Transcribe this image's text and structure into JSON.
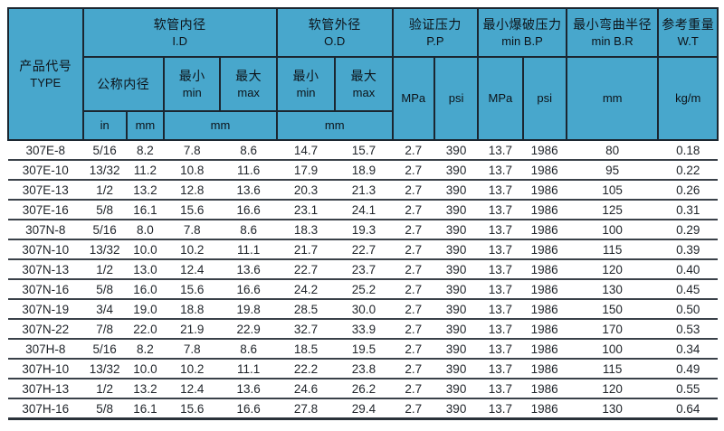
{
  "colors": {
    "header_bg": "#48a7cc",
    "header_border": "#1b2630",
    "row_line": "#3a4149",
    "text": "#1f242a",
    "page_bg": "#ffffff"
  },
  "table": {
    "header": {
      "type": {
        "zh": "产品代号",
        "en": "TYPE"
      },
      "inner_diameter": {
        "zh": "软管内径",
        "en": "I.D"
      },
      "outer_diameter": {
        "zh": "软管外径",
        "en": "O.D"
      },
      "proof_pressure": {
        "zh": "验证压力",
        "en": "P.P"
      },
      "burst_pressure": {
        "zh": "最小爆破压力",
        "en": "min B.P"
      },
      "bend_radius": {
        "zh": "最小弯曲半径",
        "en": "min B.R"
      },
      "weight": {
        "zh": "参考重量",
        "en": "W.T"
      },
      "nominal_id": {
        "zh": "公称内径"
      },
      "min": {
        "zh": "最小",
        "en": "min"
      },
      "max": {
        "zh": "最大",
        "en": "max"
      },
      "units": {
        "inch": "in",
        "mm": "mm",
        "mpa": "MPa",
        "psi": "psi",
        "kg_per_m": "kg/m"
      }
    },
    "column_keys": [
      "type",
      "nominal-in",
      "nominal-mm",
      "id-min",
      "id-max",
      "od-min",
      "od-max",
      "pp-mpa",
      "pp-psi",
      "bp-mpa",
      "bp-psi",
      "br-mm",
      "wt-kgm"
    ],
    "rows": [
      [
        "307E-8",
        "5/16",
        "8.2",
        "7.8",
        "8.6",
        "14.7",
        "15.7",
        "2.7",
        "390",
        "13.7",
        "1986",
        "80",
        "0.18"
      ],
      [
        "307E-10",
        "13/32",
        "11.2",
        "10.8",
        "11.6",
        "17.9",
        "18.9",
        "2.7",
        "390",
        "13.7",
        "1986",
        "95",
        "0.22"
      ],
      [
        "307E-13",
        "1/2",
        "13.2",
        "12.8",
        "13.6",
        "20.3",
        "21.3",
        "2.7",
        "390",
        "13.7",
        "1986",
        "105",
        "0.26"
      ],
      [
        "307E-16",
        "5/8",
        "16.1",
        "15.6",
        "16.6",
        "23.1",
        "24.1",
        "2.7",
        "390",
        "13.7",
        "1986",
        "125",
        "0.31"
      ],
      [
        "307N-8",
        "5/16",
        "8.0",
        "7.8",
        "8.6",
        "18.3",
        "19.3",
        "2.7",
        "390",
        "13.7",
        "1986",
        "100",
        "0.29"
      ],
      [
        "307N-10",
        "13/32",
        "10.0",
        "10.2",
        "11.1",
        "21.7",
        "22.7",
        "2.7",
        "390",
        "13.7",
        "1986",
        "115",
        "0.39"
      ],
      [
        "307N-13",
        "1/2",
        "13.0",
        "12.4",
        "13.6",
        "22.7",
        "23.7",
        "2.7",
        "390",
        "13.7",
        "1986",
        "120",
        "0.40"
      ],
      [
        "307N-16",
        "5/8",
        "16.0",
        "15.6",
        "16.6",
        "24.2",
        "25.2",
        "2.7",
        "390",
        "13.7",
        "1986",
        "130",
        "0.45"
      ],
      [
        "307N-19",
        "3/4",
        "19.0",
        "18.8",
        "19.8",
        "28.5",
        "30.0",
        "2.7",
        "390",
        "13.7",
        "1986",
        "150",
        "0.50"
      ],
      [
        "307N-22",
        "7/8",
        "22.0",
        "21.9",
        "22.9",
        "32.7",
        "33.9",
        "2.7",
        "390",
        "13.7",
        "1986",
        "170",
        "0.53"
      ],
      [
        "307H-8",
        "5/16",
        "8.2",
        "7.8",
        "8.6",
        "18.5",
        "19.5",
        "2.7",
        "390",
        "13.7",
        "1986",
        "100",
        "0.34"
      ],
      [
        "307H-10",
        "13/32",
        "10.0",
        "10.2",
        "11.1",
        "22.2",
        "23.8",
        "2.7",
        "390",
        "13.7",
        "1986",
        "115",
        "0.49"
      ],
      [
        "307H-13",
        "1/2",
        "13.2",
        "12.4",
        "13.6",
        "24.6",
        "26.2",
        "2.7",
        "390",
        "13.7",
        "1986",
        "120",
        "0.55"
      ],
      [
        "307H-16",
        "5/8",
        "16.1",
        "15.6",
        "16.6",
        "27.8",
        "29.4",
        "2.7",
        "390",
        "13.7",
        "1986",
        "130",
        "0.64"
      ]
    ]
  }
}
